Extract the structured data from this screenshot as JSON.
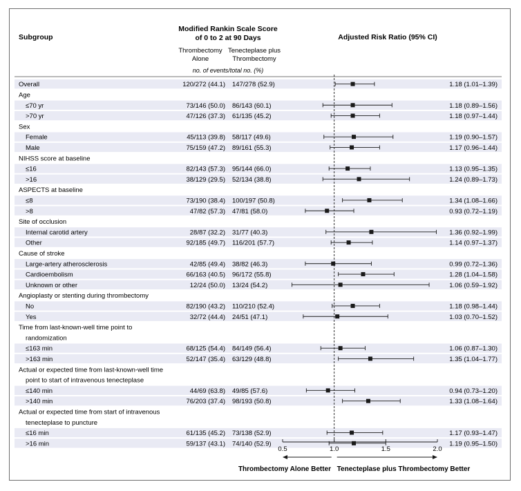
{
  "header": {
    "subgroup": "Subgroup",
    "outcome_line1": "Modified Rankin Scale Score",
    "outcome_line2": "of 0 to 2 at 90 Days",
    "arm1_line1": "Thrombectomy",
    "arm1_line2": "Alone",
    "arm2_line1": "Tenecteplase plus",
    "arm2_line2": "Thrombectomy",
    "units": "no. of events/total no. (%)",
    "risk_ratio": "Adjusted Risk Ratio (95% CI)"
  },
  "footer": {
    "left_label": "Thrombectomy Alone Better",
    "right_label": "Tenecteplase plus Thrombectomy Better"
  },
  "colors": {
    "band": "#e9eaf4",
    "ink": "#1a1a1a",
    "frame": "#6d6d6d"
  },
  "chart_data": {
    "type": "forest",
    "xlim": [
      0.5,
      2.0
    ],
    "x_ticks": [
      "0.5",
      "1.0",
      "1.5",
      "2.0"
    ],
    "reference_line": 1.0,
    "rows": [
      {
        "label": "Overall",
        "kind": "data",
        "indent": 0,
        "a": "120/272 (44.1)",
        "b": "147/278 (52.9)",
        "rr": 1.18,
        "lo": 1.01,
        "hi": 1.39,
        "ci": "1.18 (1.01–1.39)"
      },
      {
        "label": "Age",
        "kind": "header"
      },
      {
        "label": "≤70 yr",
        "kind": "data",
        "indent": 1,
        "a": "73/146 (50.0)",
        "b": "86/143 (60.1)",
        "rr": 1.18,
        "lo": 0.89,
        "hi": 1.56,
        "ci": "1.18 (0.89–1.56)"
      },
      {
        "label": ">70 yr",
        "kind": "data",
        "indent": 1,
        "a": "47/126 (37.3)",
        "b": "61/135 (45.2)",
        "rr": 1.18,
        "lo": 0.97,
        "hi": 1.44,
        "ci": "1.18 (0.97–1.44)"
      },
      {
        "label": "Sex",
        "kind": "header"
      },
      {
        "label": "Female",
        "kind": "data",
        "indent": 1,
        "a": "45/113 (39.8)",
        "b": "58/117 (49.6)",
        "rr": 1.19,
        "lo": 0.9,
        "hi": 1.57,
        "ci": "1.19 (0.90–1.57)"
      },
      {
        "label": "Male",
        "kind": "data",
        "indent": 1,
        "a": "75/159 (47.2)",
        "b": "89/161 (55.3)",
        "rr": 1.17,
        "lo": 0.96,
        "hi": 1.44,
        "ci": "1.17 (0.96–1.44)"
      },
      {
        "label": "NIHSS score at baseline",
        "kind": "header"
      },
      {
        "label": "≤16",
        "kind": "data",
        "indent": 1,
        "a": "82/143 (57.3)",
        "b": "95/144 (66.0)",
        "rr": 1.13,
        "lo": 0.95,
        "hi": 1.35,
        "ci": "1.13 (0.95–1.35)"
      },
      {
        "label": ">16",
        "kind": "data",
        "indent": 1,
        "a": "38/129 (29.5)",
        "b": "52/134 (38.8)",
        "rr": 1.24,
        "lo": 0.89,
        "hi": 1.73,
        "ci": "1.24 (0.89–1.73)"
      },
      {
        "label": "ASPECTS at baseline",
        "kind": "header"
      },
      {
        "label": "≤8",
        "kind": "data",
        "indent": 1,
        "a": "73/190 (38.4)",
        "b": "100/197 (50.8)",
        "rr": 1.34,
        "lo": 1.08,
        "hi": 1.66,
        "ci": "1.34 (1.08–1.66)"
      },
      {
        "label": ">8",
        "kind": "data",
        "indent": 1,
        "a": "47/82 (57.3)",
        "b": "47/81 (58.0)",
        "rr": 0.93,
        "lo": 0.72,
        "hi": 1.19,
        "ci": "0.93 (0.72–1.19)"
      },
      {
        "label": "Site of occlusion",
        "kind": "header"
      },
      {
        "label": "Internal carotid artery",
        "kind": "data",
        "indent": 1,
        "a": "28/87 (32.2)",
        "b": "31/77 (40.3)",
        "rr": 1.36,
        "lo": 0.92,
        "hi": 1.99,
        "ci": "1.36 (0.92–1.99)"
      },
      {
        "label": "Other",
        "kind": "data",
        "indent": 1,
        "a": "92/185 (49.7)",
        "b": "116/201 (57.7)",
        "rr": 1.14,
        "lo": 0.97,
        "hi": 1.37,
        "ci": "1.14 (0.97–1.37)"
      },
      {
        "label": "Cause of stroke",
        "kind": "header"
      },
      {
        "label": "Large-artery atherosclerosis",
        "kind": "data",
        "indent": 1,
        "a": "42/85 (49.4)",
        "b": "38/82 (46.3)",
        "rr": 0.99,
        "lo": 0.72,
        "hi": 1.36,
        "ci": "0.99 (0.72–1.36)"
      },
      {
        "label": "Cardioembolism",
        "kind": "data",
        "indent": 1,
        "a": "66/163 (40.5)",
        "b": "96/172 (55.8)",
        "rr": 1.28,
        "lo": 1.04,
        "hi": 1.58,
        "ci": "1.28 (1.04–1.58)"
      },
      {
        "label": "Unknown or other",
        "kind": "data",
        "indent": 1,
        "a": "12/24 (50.0)",
        "b": "13/24 (54.2)",
        "rr": 1.06,
        "lo": 0.59,
        "hi": 1.92,
        "ci": "1.06 (0.59–1.92)"
      },
      {
        "label": "Angioplasty or stenting during thrombectomy",
        "kind": "header"
      },
      {
        "label": "No",
        "kind": "data",
        "indent": 1,
        "a": "82/190 (43.2)",
        "b": "110/210 (52.4)",
        "rr": 1.18,
        "lo": 0.98,
        "hi": 1.44,
        "ci": "1.18 (0.98–1.44)"
      },
      {
        "label": "Yes",
        "kind": "data",
        "indent": 1,
        "a": "32/72 (44.4)",
        "b": "24/51 (47.1)",
        "rr": 1.03,
        "lo": 0.7,
        "hi": 1.52,
        "ci": "1.03 (0.70–1.52)"
      },
      {
        "label": "Time from last-known-well time point to",
        "label2": "randomization",
        "kind": "header"
      },
      {
        "label": "≤163 min",
        "kind": "data",
        "indent": 1,
        "a": "68/125 (54.4)",
        "b": "84/149 (56.4)",
        "rr": 1.06,
        "lo": 0.87,
        "hi": 1.3,
        "ci": "1.06 (0.87–1.30)"
      },
      {
        "label": ">163 min",
        "kind": "data",
        "indent": 1,
        "a": "52/147 (35.4)",
        "b": "63/129 (48.8)",
        "rr": 1.35,
        "lo": 1.04,
        "hi": 1.77,
        "ci": "1.35 (1.04–1.77)"
      },
      {
        "label": "Actual or expected time from last-known-well time",
        "label2": "point to start of intravenous tenecteplase",
        "kind": "header"
      },
      {
        "label": "≤140 min",
        "kind": "data",
        "indent": 1,
        "a": "44/69 (63.8)",
        "b": "49/85 (57.6)",
        "rr": 0.94,
        "lo": 0.73,
        "hi": 1.2,
        "ci": "0.94 (0.73–1.20)"
      },
      {
        "label": ">140 min",
        "kind": "data",
        "indent": 1,
        "a": "76/203 (37.4)",
        "b": "98/193 (50.8)",
        "rr": 1.33,
        "lo": 1.08,
        "hi": 1.64,
        "ci": "1.33 (1.08–1.64)"
      },
      {
        "label": "Actual or expected time from start of intravenous",
        "label2": "tenecteplase to puncture",
        "kind": "header"
      },
      {
        "label": "≤16 min",
        "kind": "data",
        "indent": 1,
        "a": "61/135 (45.2)",
        "b": "73/138 (52.9)",
        "rr": 1.17,
        "lo": 0.93,
        "hi": 1.47,
        "ci": "1.17 (0.93–1.47)"
      },
      {
        "label": ">16 min",
        "kind": "data",
        "indent": 1,
        "a": "59/137 (43.1)",
        "b": "74/140 (52.9)",
        "rr": 1.19,
        "lo": 0.95,
        "hi": 1.5,
        "ci": "1.19 (0.95–1.50)"
      }
    ]
  }
}
